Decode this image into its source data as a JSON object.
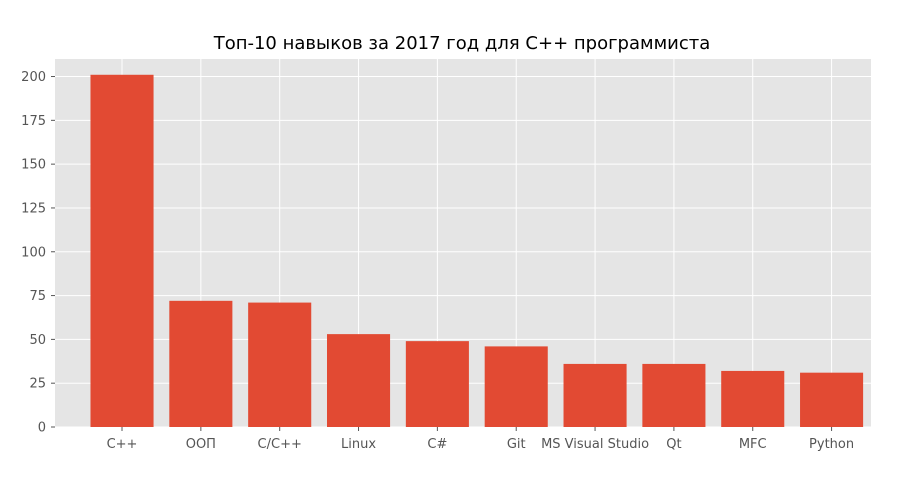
{
  "chart_data": {
    "type": "bar",
    "title": "Топ-10 навыков за 2017 год для C++ программиста",
    "xlabel": "",
    "ylabel": "",
    "categories": [
      "C++",
      "ООП",
      "C/C++",
      "Linux",
      "C#",
      "Git",
      "MS Visual Studio",
      "Qt",
      "MFC",
      "Python"
    ],
    "values": [
      201,
      72,
      71,
      53,
      49,
      46,
      36,
      36,
      32,
      31
    ],
    "ylim": [
      0,
      210
    ],
    "yticks": [
      0,
      25,
      50,
      75,
      100,
      125,
      150,
      175,
      200
    ],
    "grid": true,
    "legend": "none",
    "colors": {
      "bar": "#E24A33",
      "plot_background": "#E5E5E5",
      "grid": "#FFFFFF"
    }
  }
}
